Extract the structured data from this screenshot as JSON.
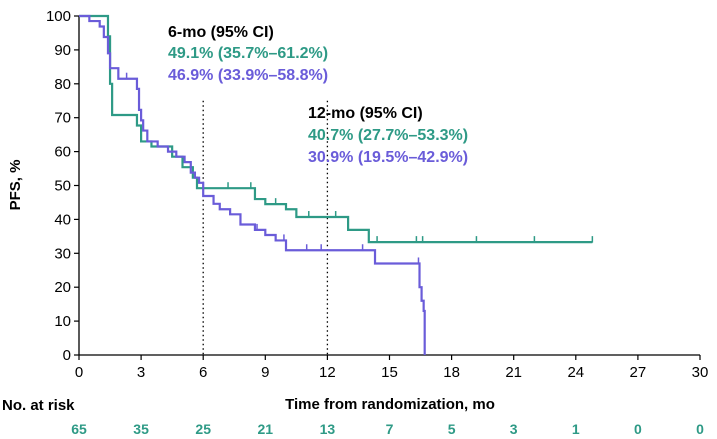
{
  "chart_data": {
    "type": "line",
    "xlabel": "Time from randomization, mo",
    "ylabel": "PFS, %",
    "xlim": [
      0,
      30
    ],
    "ylim": [
      0,
      100
    ],
    "xticks": [
      "0",
      "3",
      "6",
      "9",
      "12",
      "15",
      "18",
      "21",
      "24",
      "27",
      "30"
    ],
    "yticks": [
      "0",
      "10",
      "20",
      "30",
      "40",
      "50",
      "60",
      "70",
      "80",
      "90",
      "100"
    ],
    "grid": false,
    "reference_lines_x": [
      6,
      12
    ],
    "colors": {
      "series1": "#2e9a86",
      "series2": "#6a5cd9",
      "text": "#000000"
    },
    "series": [
      {
        "key": "series1",
        "step_points": [
          [
            0,
            100
          ],
          [
            1.3,
            100
          ],
          [
            1.4,
            94
          ],
          [
            1.5,
            80
          ],
          [
            1.6,
            70.8
          ],
          [
            2.7,
            70.8
          ],
          [
            2.8,
            67.7
          ],
          [
            3.0,
            63
          ],
          [
            3.5,
            61.5
          ],
          [
            4.5,
            58.5
          ],
          [
            5.0,
            55.4
          ],
          [
            5.5,
            52.3
          ],
          [
            5.7,
            49.2
          ],
          [
            8.0,
            49.2
          ],
          [
            8.5,
            46
          ],
          [
            9.0,
            44.5
          ],
          [
            10.0,
            43
          ],
          [
            10.5,
            40.7
          ],
          [
            12.8,
            40.7
          ],
          [
            13.0,
            36.9
          ],
          [
            14.0,
            33.3
          ],
          [
            24.8,
            33.3
          ]
        ],
        "censor_x": [
          7.2,
          8.3,
          9.5,
          11.1,
          12.4,
          14.4,
          16.3,
          16.6,
          19.2,
          22.0,
          24.8
        ]
      },
      {
        "key": "series2",
        "step_points": [
          [
            0,
            100
          ],
          [
            0.5,
            98.5
          ],
          [
            1.0,
            96.9
          ],
          [
            1.2,
            93.8
          ],
          [
            1.4,
            89
          ],
          [
            1.5,
            84.6
          ],
          [
            1.9,
            81.5
          ],
          [
            2.8,
            78.5
          ],
          [
            2.9,
            72.3
          ],
          [
            3.0,
            69.2
          ],
          [
            3.1,
            66.2
          ],
          [
            3.3,
            63
          ],
          [
            3.8,
            61.5
          ],
          [
            4.3,
            60
          ],
          [
            4.7,
            58.5
          ],
          [
            5.1,
            56.9
          ],
          [
            5.4,
            53.8
          ],
          [
            5.6,
            52.3
          ],
          [
            5.8,
            50.8
          ],
          [
            6.0,
            46.9
          ],
          [
            6.5,
            44.6
          ],
          [
            6.8,
            43
          ],
          [
            7.3,
            41.5
          ],
          [
            7.8,
            38.5
          ],
          [
            8.5,
            36.9
          ],
          [
            9.0,
            35.4
          ],
          [
            9.5,
            33.8
          ],
          [
            10.0,
            30.9
          ],
          [
            14.2,
            30.9
          ],
          [
            14.3,
            27
          ],
          [
            16.3,
            27
          ],
          [
            16.45,
            20
          ],
          [
            16.55,
            16
          ],
          [
            16.65,
            13
          ],
          [
            16.7,
            0
          ]
        ],
        "censor_x": [
          1.5,
          2.3,
          8.6,
          9.9,
          11.0,
          11.7,
          13.7,
          16.4
        ]
      }
    ],
    "annotations": {
      "six_mo": {
        "title": "6-mo (95% CI)",
        "line1": "49.1% (35.7%–61.2%)",
        "line2": "46.9% (33.9%–58.8%)"
      },
      "twelve_mo": {
        "title": "12-mo (95% CI)",
        "line1": "40.7% (27.7%–53.3%)",
        "line2": "30.9% (19.5%–42.9%)"
      }
    },
    "at_risk": {
      "label": "No. at risk",
      "values": [
        "65",
        "35",
        "25",
        "21",
        "13",
        "7",
        "5",
        "3",
        "1",
        "0",
        "0"
      ]
    }
  }
}
